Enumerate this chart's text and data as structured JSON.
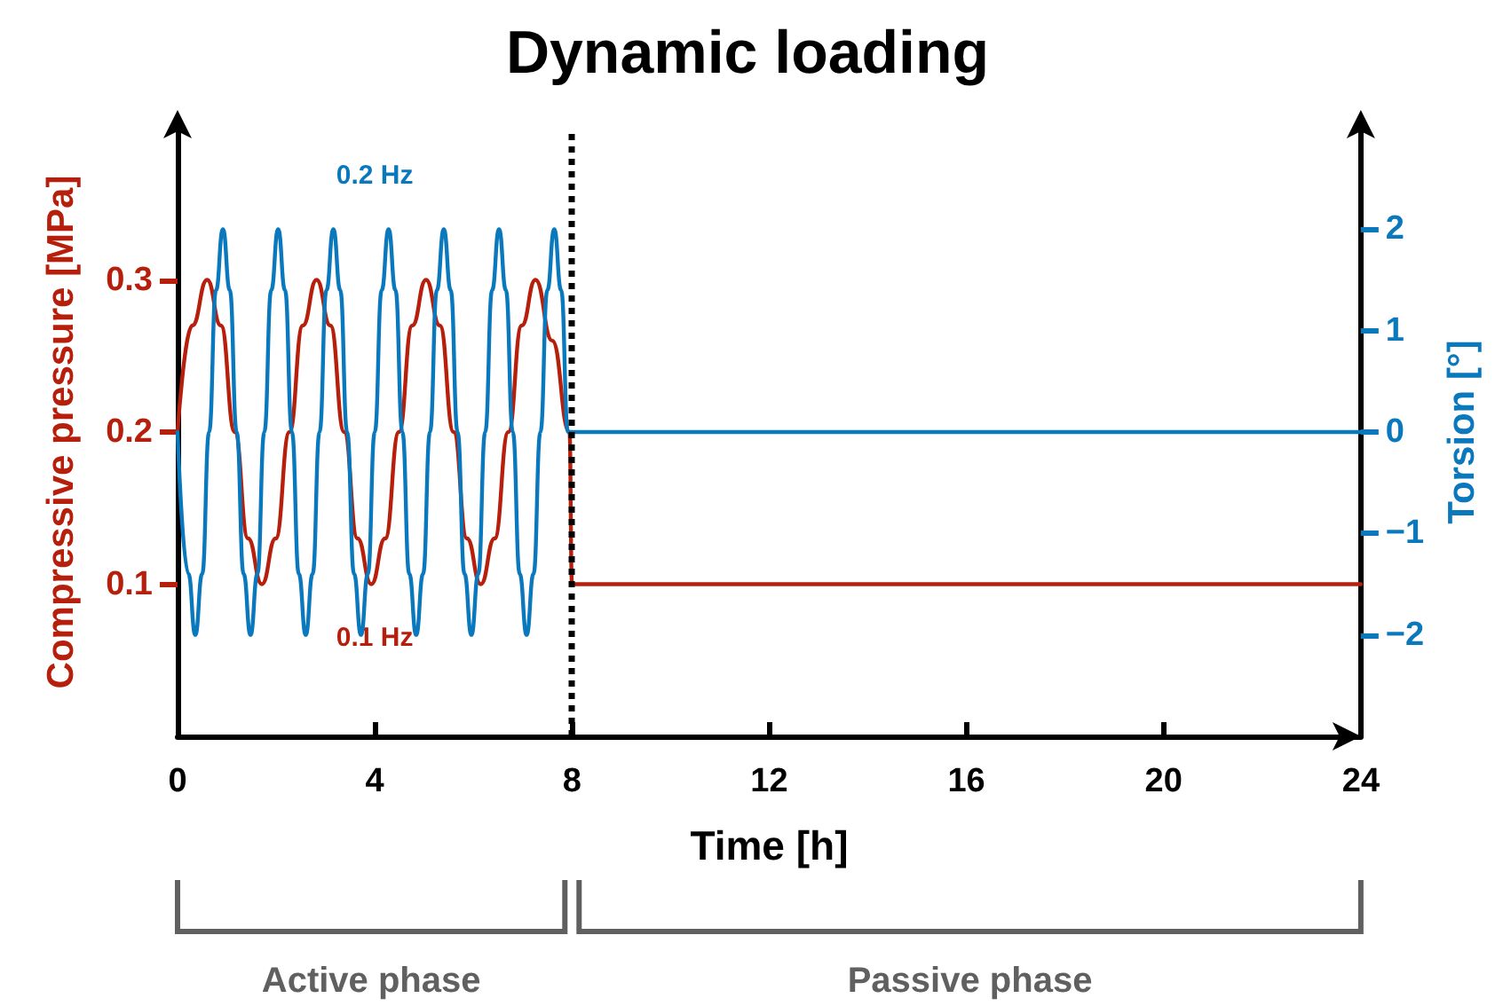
{
  "chart_data": {
    "type": "line",
    "title": "Dynamic loading",
    "xlabel": "Time [h]",
    "ylabel": "Compressive pressure [MPa]",
    "y2label": "Torsion [°]",
    "xlim": [
      0,
      24
    ],
    "xticks": [
      0,
      4,
      8,
      12,
      16,
      20,
      24
    ],
    "ylim": [
      0,
      0.4
    ],
    "yticks": [
      0.1,
      0.2,
      0.3
    ],
    "y2lim": [
      -3,
      3
    ],
    "y2ticks": [
      -2,
      -1,
      0,
      1,
      2
    ],
    "grid": false,
    "marker": "none",
    "line_style": "solid",
    "ref_lines": [
      {
        "axis": "x",
        "value": 8,
        "color": "#000000",
        "line_style": "dotted"
      }
    ],
    "annotations": [
      "Active phase",
      "Passive phase"
    ],
    "series": [
      {
        "name": "0.1 Hz",
        "color": "#b61f0c",
        "axis": "y",
        "x": [
          0,
          0.3,
          0.6,
          0.88,
          1.16,
          1.43,
          1.71,
          1.99,
          2.27,
          2.54,
          2.82,
          3.1,
          3.38,
          3.65,
          3.93,
          4.21,
          4.49,
          4.76,
          5.04,
          5.32,
          5.6,
          5.87,
          6.15,
          6.43,
          6.71,
          6.98,
          7.26,
          7.6,
          7.95,
          8,
          24
        ],
        "values": [
          0.2,
          0.27,
          0.3,
          0.27,
          0.2,
          0.13,
          0.1,
          0.13,
          0.2,
          0.27,
          0.3,
          0.27,
          0.2,
          0.13,
          0.1,
          0.13,
          0.2,
          0.27,
          0.3,
          0.27,
          0.2,
          0.13,
          0.1,
          0.13,
          0.2,
          0.27,
          0.3,
          0.26,
          0.2,
          0.1,
          0.1
        ]
      },
      {
        "name": "0.2 Hz",
        "color": "#0a78bd",
        "axis": "y2",
        "x": [
          0,
          0.22,
          0.36,
          0.5,
          0.64,
          0.78,
          0.92,
          1.06,
          1.2,
          1.34,
          1.48,
          1.62,
          1.76,
          1.9,
          2.04,
          2.18,
          2.32,
          2.46,
          2.6,
          2.74,
          2.88,
          3.02,
          3.16,
          3.3,
          3.44,
          3.58,
          3.72,
          3.86,
          4,
          4.14,
          4.28,
          4.42,
          4.56,
          4.7,
          4.84,
          4.98,
          5.12,
          5.26,
          5.4,
          5.54,
          5.68,
          5.82,
          5.96,
          6.1,
          6.24,
          6.38,
          6.52,
          6.66,
          6.8,
          6.94,
          7.08,
          7.22,
          7.36,
          7.5,
          7.64,
          7.78,
          7.92,
          8,
          24
        ],
        "values": [
          0,
          -1.4,
          -2,
          -1.4,
          0,
          1.4,
          2,
          1.4,
          0,
          -1.4,
          -2,
          -1.4,
          0,
          1.4,
          2,
          1.4,
          0,
          -1.4,
          -2,
          -1.4,
          0,
          1.4,
          2,
          1.4,
          0,
          -1.4,
          -2,
          -1.4,
          0,
          1.4,
          2,
          1.4,
          0,
          -1.4,
          -2,
          -1.4,
          0,
          1.4,
          2,
          1.4,
          0,
          -1.4,
          -2,
          -1.4,
          0,
          1.4,
          2,
          1.4,
          0,
          -1.4,
          -2,
          -1.4,
          0,
          1.4,
          2,
          1.4,
          0,
          0,
          0
        ]
      }
    ]
  }
}
